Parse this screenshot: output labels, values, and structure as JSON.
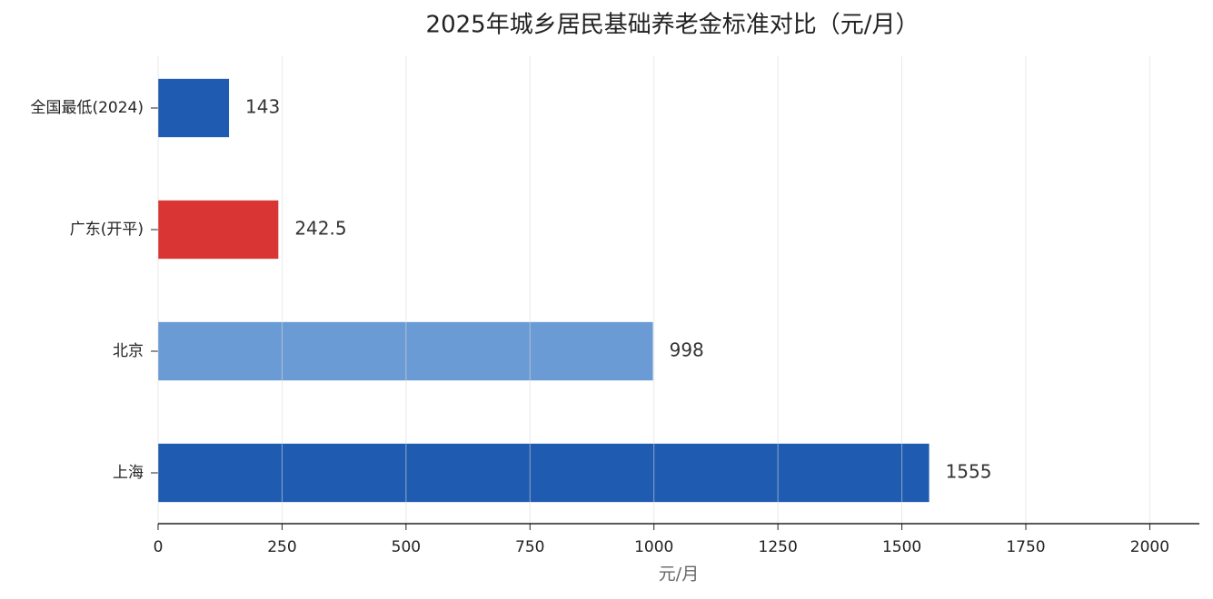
{
  "chart_data": {
    "type": "barh",
    "title": "2025年城乡居民基础养老金标准对比（元/月）",
    "xlabel": "元/月",
    "categories": [
      "全国最低(2024)",
      "广东(开平)",
      "北京",
      "上海"
    ],
    "values": [
      143,
      242.5,
      998,
      1555
    ],
    "colors": [
      "#1f5bb0",
      "#d93535",
      "#6b9bd4",
      "#1f5bb0"
    ],
    "xlim": [
      0,
      2100
    ],
    "xticks": [
      0,
      250,
      500,
      750,
      1000,
      1250,
      1500,
      1750,
      2000
    ],
    "grid": true,
    "show_values": true
  }
}
